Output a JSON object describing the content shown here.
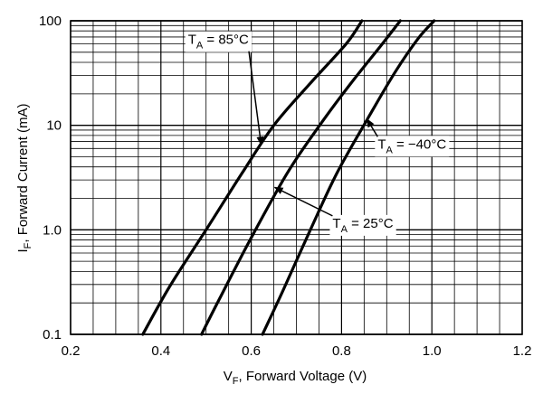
{
  "chart_data": {
    "type": "line",
    "title": "",
    "xlabel": {
      "main": "V",
      "sub": "F",
      "rest": ", Forward Voltage (V)"
    },
    "ylabel": {
      "main": "I",
      "sub": "F",
      "rest": ", Forward Current (mA)"
    },
    "xlim": [
      0.2,
      1.2
    ],
    "ylim": [
      0.1,
      100
    ],
    "yscale": "log",
    "grid": true,
    "xticks": [
      0.2,
      0.4,
      0.6,
      0.8,
      1.0,
      1.2
    ],
    "xtick_labels": [
      "0.2",
      "0.4",
      "0.6",
      "0.8",
      "1.0",
      "1.2"
    ],
    "yticks": [
      0.1,
      1,
      10,
      100
    ],
    "ytick_labels": [
      "0.1",
      "1.0",
      "10",
      "100"
    ],
    "series": [
      {
        "name": "TA = 85°C",
        "label_main": "T",
        "label_sub": "A",
        "label_rest": " = 85°C",
        "x": [
          0.36,
          0.42,
          0.5,
          0.58,
          0.65,
          0.73,
          0.81,
          0.845
        ],
        "y": [
          0.1,
          0.29,
          1.0,
          3.5,
          10,
          25,
          60,
          100
        ]
      },
      {
        "name": "TA = 25°C",
        "label_main": "T",
        "label_sub": "A",
        "label_rest": " = 25°C",
        "x": [
          0.49,
          0.53,
          0.6,
          0.68,
          0.75,
          0.82,
          0.89,
          0.93
        ],
        "y": [
          0.1,
          0.22,
          0.84,
          3.5,
          9.8,
          25,
          60,
          100
        ]
      },
      {
        "name": "TA = −40°C",
        "label_main": "T",
        "label_sub": "A",
        "label_rest": " = −40°C",
        "x": [
          0.625,
          0.67,
          0.73,
          0.79,
          0.86,
          0.92,
          0.97,
          1.005
        ],
        "y": [
          0.1,
          0.26,
          0.98,
          3.5,
          12,
          33,
          68,
          100
        ]
      }
    ],
    "annotations": [
      {
        "series": 0,
        "text_x": 0.46,
        "text_y": 60,
        "point_x": 0.622,
        "point_y": 6.5
      },
      {
        "series": 1,
        "text_x": 0.78,
        "text_y": 1.05,
        "point_x": 0.652,
        "point_y": 2.55
      },
      {
        "series": 2,
        "text_x": 0.88,
        "text_y": 6.0,
        "point_x": 0.856,
        "point_y": 11.5
      }
    ]
  }
}
